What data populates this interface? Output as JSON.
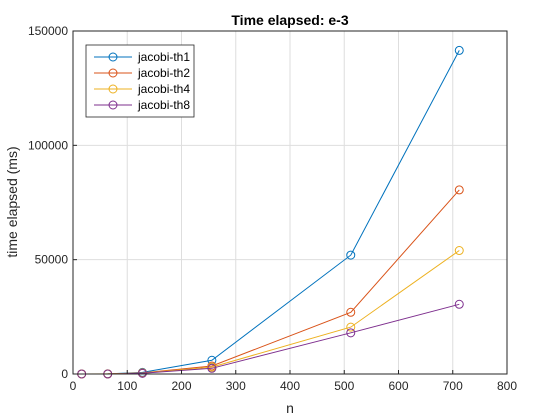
{
  "chart_data": {
    "type": "line",
    "title": "Time elapsed: e-3",
    "xlabel": "n",
    "ylabel": "time elapsed (ms)",
    "xlim": [
      0,
      800
    ],
    "ylim": [
      0,
      150000
    ],
    "xticks": [
      0,
      100,
      200,
      300,
      400,
      500,
      600,
      700,
      800
    ],
    "yticks": [
      0,
      50000,
      100000,
      150000
    ],
    "grid": true,
    "legend_position": "top-left",
    "marker": "circle",
    "x": [
      16,
      64,
      128,
      256,
      512,
      712
    ],
    "series": [
      {
        "name": "jacobi-th1",
        "color": "#0072bd",
        "values": [
          10,
          40,
          700,
          6000,
          52000,
          141500
        ]
      },
      {
        "name": "jacobi-th2",
        "color": "#d95319",
        "values": [
          10,
          30,
          500,
          3500,
          27000,
          80500
        ]
      },
      {
        "name": "jacobi-th4",
        "color": "#edb120",
        "values": [
          10,
          25,
          400,
          3000,
          20500,
          54000
        ]
      },
      {
        "name": "jacobi-th8",
        "color": "#7e2f8e",
        "values": [
          10,
          20,
          300,
          2500,
          18000,
          30500
        ]
      }
    ]
  }
}
